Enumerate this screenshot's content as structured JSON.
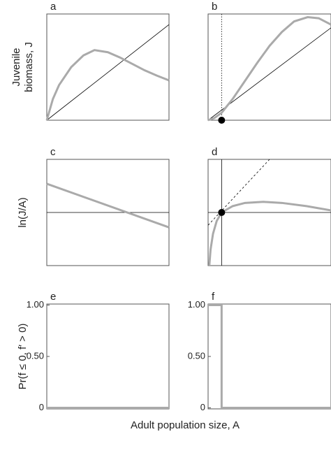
{
  "figure": {
    "xlabel": "Adult population size, A"
  },
  "chart_data": [
    {
      "type": "line",
      "title": "a",
      "ylabel": [
        "Juvenile",
        "biomass, J"
      ],
      "xlim": [
        0,
        1
      ],
      "ylim": [
        0,
        1
      ],
      "series": [
        {
          "color": "#000000",
          "width": 0.8,
          "dash": "solid",
          "x": [
            0,
            1
          ],
          "values": [
            0,
            0.9
          ]
        },
        {
          "color": "#aaaaaa",
          "width": 3,
          "dash": "solid",
          "x": [
            0,
            0.05,
            0.1,
            0.2,
            0.3,
            0.39,
            0.5,
            0.6,
            0.7,
            0.8,
            0.9,
            1
          ],
          "values": [
            0,
            0.2,
            0.33,
            0.5,
            0.61,
            0.66,
            0.64,
            0.59,
            0.53,
            0.47,
            0.42,
            0.375
          ]
        }
      ]
    },
    {
      "type": "line",
      "title": "b",
      "xlim": [
        0,
        1
      ],
      "ylim": [
        0,
        1
      ],
      "series": [
        {
          "color": "#000000",
          "width": 0.8,
          "dash": "solid",
          "x": [
            0,
            1
          ],
          "values": [
            0,
            0.87
          ]
        },
        {
          "color": "#000000",
          "width": 0.8,
          "dash": "dotted",
          "x": [
            0.11,
            0.11
          ],
          "values": [
            0,
            1
          ]
        },
        {
          "color": "#aaaaaa",
          "width": 3,
          "dash": "solid",
          "x": [
            0,
            0.05,
            0.11,
            0.2,
            0.3,
            0.4,
            0.5,
            0.6,
            0.7,
            0.81,
            0.9,
            1
          ],
          "values": [
            0,
            0.02,
            0.07,
            0.2,
            0.37,
            0.54,
            0.7,
            0.83,
            0.93,
            0.97,
            0.96,
            0.9
          ]
        },
        {
          "color": "#000000",
          "marker": true,
          "x": [
            0.11
          ],
          "values": [
            0
          ]
        }
      ]
    },
    {
      "type": "line",
      "title": "c",
      "ylabel": [
        "ln(J/A)"
      ],
      "xlim": [
        0,
        1
      ],
      "ylim": [
        0,
        1
      ],
      "series": [
        {
          "color": "#000000",
          "width": 0.8,
          "dash": "solid",
          "x": [
            0,
            1
          ],
          "values": [
            0.5,
            0.5
          ]
        },
        {
          "color": "#aaaaaa",
          "width": 3,
          "dash": "solid",
          "x": [
            0,
            1
          ],
          "values": [
            0.77,
            0.36
          ]
        }
      ]
    },
    {
      "type": "line",
      "title": "d",
      "xlim": [
        0,
        1
      ],
      "ylim": [
        0,
        1
      ],
      "series": [
        {
          "color": "#000000",
          "width": 0.8,
          "dash": "solid",
          "x": [
            0,
            1
          ],
          "values": [
            0.5,
            0.5
          ]
        },
        {
          "color": "#000000",
          "width": 0.8,
          "dash": "solid",
          "x": [
            0.11,
            0.11
          ],
          "values": [
            0,
            1
          ]
        },
        {
          "color": "#000000",
          "width": 0.8,
          "dash": "dashed",
          "x": [
            0,
            0.5
          ],
          "values": [
            0.38,
            1
          ]
        },
        {
          "color": "#aaaaaa",
          "width": 3,
          "dash": "solid",
          "x": [
            0.01,
            0.02,
            0.04,
            0.07,
            0.11,
            0.2,
            0.3,
            0.45,
            0.6,
            0.8,
            1
          ],
          "values": [
            0,
            0.15,
            0.3,
            0.42,
            0.5,
            0.56,
            0.59,
            0.6,
            0.59,
            0.56,
            0.52
          ]
        },
        {
          "color": "#000000",
          "marker": true,
          "x": [
            0.11
          ],
          "values": [
            0.5
          ]
        }
      ]
    },
    {
      "type": "line",
      "title": "e",
      "ylabel": [
        "Pr(f ≤ 0, f′ > 0)"
      ],
      "xlim": [
        0,
        1
      ],
      "ylim": [
        -0.01,
        1.01
      ],
      "yticks": [
        0,
        {
          "value": 0.5,
          "label": "0.50"
        },
        {
          "value": 1,
          "label": "1.00"
        }
      ],
      "series": [
        {
          "color": "#aaaaaa",
          "width": 3,
          "dash": "solid",
          "x": [
            0,
            1
          ],
          "values": [
            0,
            0
          ]
        }
      ]
    },
    {
      "type": "line",
      "title": "f",
      "xlim": [
        0,
        1
      ],
      "ylim": [
        -0.01,
        1.01
      ],
      "yticks": [
        0,
        {
          "value": 0.5,
          "label": "0.50"
        },
        {
          "value": 1,
          "label": "1.00"
        }
      ],
      "series": [
        {
          "color": "#aaaaaa",
          "width": 3,
          "dash": "solid",
          "x": [
            0,
            0.11,
            0.11,
            1
          ],
          "values": [
            1,
            1,
            0,
            0
          ]
        }
      ]
    }
  ]
}
